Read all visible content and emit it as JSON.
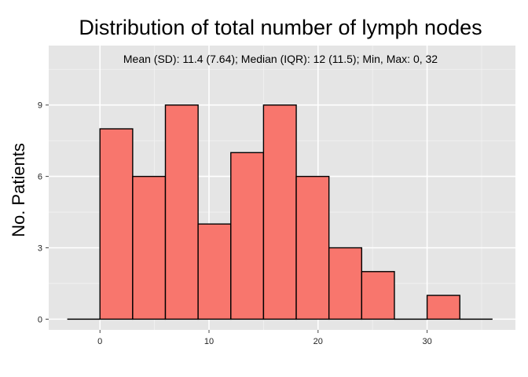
{
  "chart_data": {
    "type": "bar",
    "title": "Distribution of total number of lymph nodes",
    "annotation": "Mean (SD): 11.4 (7.64); Median (IQR): 12 (11.5); Min, Max: 0, 32",
    "xlabel": "",
    "ylabel": "No. Patients",
    "bins": [
      {
        "start": -3,
        "end": 0,
        "count": 0
      },
      {
        "start": 0,
        "end": 3,
        "count": 8
      },
      {
        "start": 3,
        "end": 6,
        "count": 6
      },
      {
        "start": 6,
        "end": 9,
        "count": 9
      },
      {
        "start": 9,
        "end": 12,
        "count": 4
      },
      {
        "start": 12,
        "end": 15,
        "count": 7
      },
      {
        "start": 15,
        "end": 18,
        "count": 9
      },
      {
        "start": 18,
        "end": 21,
        "count": 6
      },
      {
        "start": 21,
        "end": 24,
        "count": 3
      },
      {
        "start": 24,
        "end": 27,
        "count": 2
      },
      {
        "start": 27,
        "end": 30,
        "count": 0
      },
      {
        "start": 30,
        "end": 33,
        "count": 1
      },
      {
        "start": 33,
        "end": 36,
        "count": 0
      }
    ],
    "xlim": [
      -4.7,
      38.1
    ],
    "ylim": [
      -0.45,
      11.5
    ],
    "x_ticks": [
      0,
      10,
      20,
      30
    ],
    "y_ticks": [
      0,
      3,
      6,
      9
    ],
    "grid": true,
    "colors": {
      "bar_fill": "#F8766D",
      "bar_stroke": "#000000",
      "panel_bg": "#E5E5E5",
      "grid_major": "#FFFFFF",
      "grid_minor": "#F2F2F2"
    }
  }
}
